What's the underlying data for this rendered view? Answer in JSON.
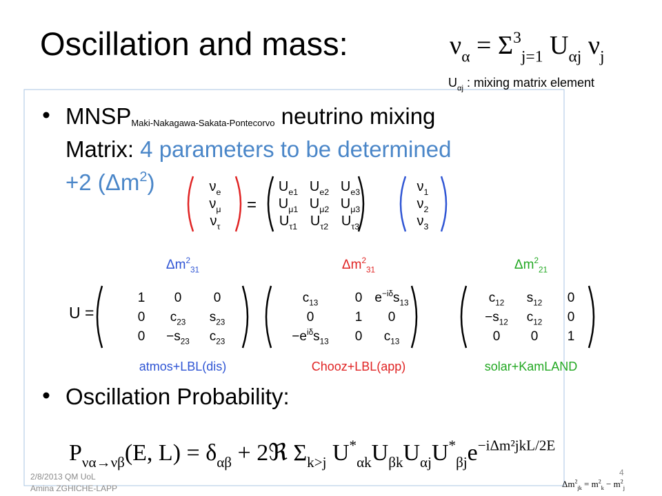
{
  "title": "Oscillation and mass:",
  "header_formula": [
    "ν",
    {
      "sub": "α"
    },
    " = ",
    "Σ",
    {
      "sup": "3"
    },
    {
      "sub": "j=1"
    },
    " U",
    {
      "sub": "αj"
    },
    " ν",
    {
      "sub": "j"
    }
  ],
  "header_caption": [
    "U",
    {
      "sub": "αj"
    },
    " : mixing matrix element"
  ],
  "bullets": [
    {
      "main": "MNSP",
      "sub": "Maki-Nakagawa-Sakata-Pontecorvo",
      "rest": " neutrino mixing",
      "line2": "Matrix: ",
      "line2_highlight": "4 parameters to be determined",
      "line3": "+2 (Δm",
      "line3_sup": "2",
      "line3_end": ")"
    },
    {
      "main": "Oscillation Probability:"
    }
  ],
  "flavor_vector": [
    [
      "ν",
      {
        "sub": "e"
      }
    ],
    [
      "ν",
      {
        "sub": "μ"
      }
    ],
    [
      "ν",
      {
        "sub": "τ"
      }
    ]
  ],
  "equals": "=",
  "mixing_matrix": [
    [
      [
        "U",
        {
          "sub": "e1"
        }
      ],
      [
        "U",
        {
          "sub": "e2"
        }
      ],
      [
        "U",
        {
          "sub": "e3"
        }
      ]
    ],
    [
      [
        "U",
        {
          "sub": "μ1"
        }
      ],
      [
        "U",
        {
          "sub": "μ2"
        }
      ],
      [
        "U",
        {
          "sub": "μ3"
        }
      ]
    ],
    [
      [
        "U",
        {
          "sub": "τ1"
        }
      ],
      [
        "U",
        {
          "sub": "τ2"
        }
      ],
      [
        "U",
        {
          "sub": "τ3"
        }
      ]
    ]
  ],
  "mass_vector": [
    [
      "ν",
      {
        "sub": "1"
      }
    ],
    [
      "ν",
      {
        "sub": "2"
      }
    ],
    [
      "ν",
      {
        "sub": "3"
      }
    ]
  ],
  "u_label": "U =",
  "factors": [
    {
      "mass_label": [
        "Δm",
        {
          "sup": "2"
        },
        {
          "sub": "31"
        }
      ],
      "color": "#2f55d4",
      "matrix": [
        [
          [
            "1"
          ],
          [
            "0"
          ],
          [
            "0"
          ]
        ],
        [
          [
            "0"
          ],
          [
            "c",
            {
              "sub": "23"
            }
          ],
          [
            "s",
            {
              "sub": "23"
            }
          ]
        ],
        [
          [
            "0"
          ],
          [
            "−s",
            {
              "sub": "23"
            }
          ],
          [
            "c",
            {
              "sub": "23"
            }
          ]
        ]
      ],
      "experiments": "atmos+LBL(dis)"
    },
    {
      "mass_label": [
        "Δm",
        {
          "sup": "2"
        },
        {
          "sub": "31"
        }
      ],
      "color": "#e02424",
      "matrix": [
        [
          [
            "c",
            {
              "sub": "13"
            }
          ],
          [
            "0"
          ],
          [
            "e",
            {
              "sup": "−iδ"
            },
            "s",
            {
              "sub": "13"
            }
          ]
        ],
        [
          [
            "0"
          ],
          [
            "1"
          ],
          [
            "0"
          ]
        ],
        [
          [
            "−e",
            {
              "sup": "iδ"
            },
            "s",
            {
              "sub": "13"
            }
          ],
          [
            "0"
          ],
          [
            "c",
            {
              "sub": "13"
            }
          ]
        ]
      ],
      "experiments": "Chooz+LBL(app)"
    },
    {
      "mass_label": [
        "Δm",
        {
          "sup": "2"
        },
        {
          "sub": "21"
        }
      ],
      "color": "#22a822",
      "matrix": [
        [
          [
            "c",
            {
              "sub": "12"
            }
          ],
          [
            "s",
            {
              "sub": "12"
            }
          ],
          [
            "0"
          ]
        ],
        [
          [
            "−s",
            {
              "sub": "12"
            }
          ],
          [
            "c",
            {
              "sub": "12"
            }
          ],
          [
            "0"
          ]
        ],
        [
          [
            "0"
          ],
          [
            "0"
          ],
          [
            "1"
          ]
        ]
      ],
      "experiments": "solar+KamLAND"
    }
  ],
  "probability_formula": [
    "P",
    {
      "sub": "να→νβ"
    },
    "(E, L) = δ",
    {
      "sub": "αβ"
    },
    " + 2ℜ Σ",
    {
      "sub": "k>j"
    },
    " U",
    {
      "sup": "*"
    },
    {
      "sub": "αk"
    },
    "U",
    {
      "sub": "βk"
    },
    "U",
    {
      "sub": "αj"
    },
    "U",
    {
      "sup": "*"
    },
    {
      "sub": "βj"
    },
    "e",
    {
      "sup": "−iΔm²jkL/2E"
    }
  ],
  "mass_difference": [
    "Δm",
    {
      "sup": "2"
    },
    {
      "sub": "jk"
    },
    " = m",
    {
      "sup": "2"
    },
    {
      "sub": "k"
    },
    " − m",
    {
      "sup": "2"
    },
    {
      "sub": "j"
    }
  ],
  "footer": {
    "date": "2/8/2013 QM UoL",
    "author": "Amina ZGHICHE-LAPP",
    "page": "4"
  }
}
